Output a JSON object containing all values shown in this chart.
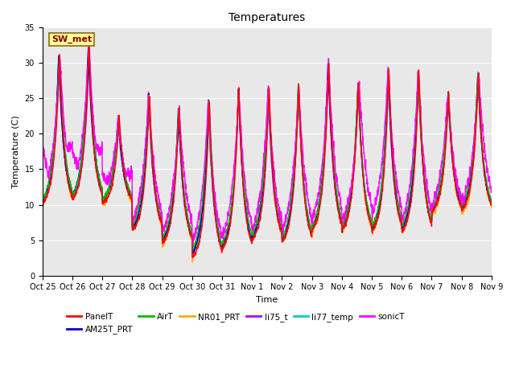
{
  "title": "Temperatures",
  "xlabel": "Time",
  "ylabel": "Temperature (C)",
  "ylim": [
    0,
    35
  ],
  "background_color": "#e8e8e8",
  "series": {
    "PanelT": {
      "color": "#ff0000",
      "lw": 1.0
    },
    "AM25T_PRT": {
      "color": "#0000cc",
      "lw": 1.0
    },
    "AirT": {
      "color": "#00bb00",
      "lw": 1.0
    },
    "NR01_PRT": {
      "color": "#ffaa00",
      "lw": 1.0
    },
    "li75_t": {
      "color": "#aa00ff",
      "lw": 1.0
    },
    "li77_temp": {
      "color": "#00cccc",
      "lw": 1.0
    },
    "sonicT": {
      "color": "#ff00ff",
      "lw": 1.0
    }
  },
  "station_label": "SW_met",
  "tick_labels": [
    "Oct 25",
    "Oct 26",
    "Oct 27",
    "Oct 28",
    "Oct 29",
    "Oct 30",
    "Oct 31",
    "Nov 1",
    "Nov 2",
    "Nov 3",
    "Nov 4",
    "Nov 5",
    "Nov 6",
    "Nov 7",
    "Nov 8",
    "Nov 9"
  ],
  "n_days": 15,
  "points_per_day": 144,
  "day_peaks": [
    31.0,
    32.2,
    22.3,
    25.5,
    23.5,
    24.5,
    26.3,
    26.5,
    26.8,
    30.0,
    27.2,
    29.0,
    28.8,
    25.8,
    28.5
  ],
  "day_mins": [
    9.5,
    10.0,
    10.0,
    5.8,
    4.0,
    2.0,
    3.0,
    4.5,
    4.0,
    5.5,
    5.5,
    5.5,
    5.5,
    8.5,
    8.5
  ],
  "sonic_peaks": [
    17.0,
    30.0,
    21.0,
    22.5,
    23.0,
    24.5,
    26.0,
    12.5,
    13.0,
    26.5,
    16.0,
    17.0,
    16.0,
    16.0,
    15.0
  ],
  "sonic_mins": [
    9.5,
    10.0,
    10.0,
    5.8,
    4.0,
    2.0,
    3.0,
    4.5,
    4.0,
    5.5,
    5.5,
    5.5,
    5.5,
    8.5,
    8.5
  ]
}
